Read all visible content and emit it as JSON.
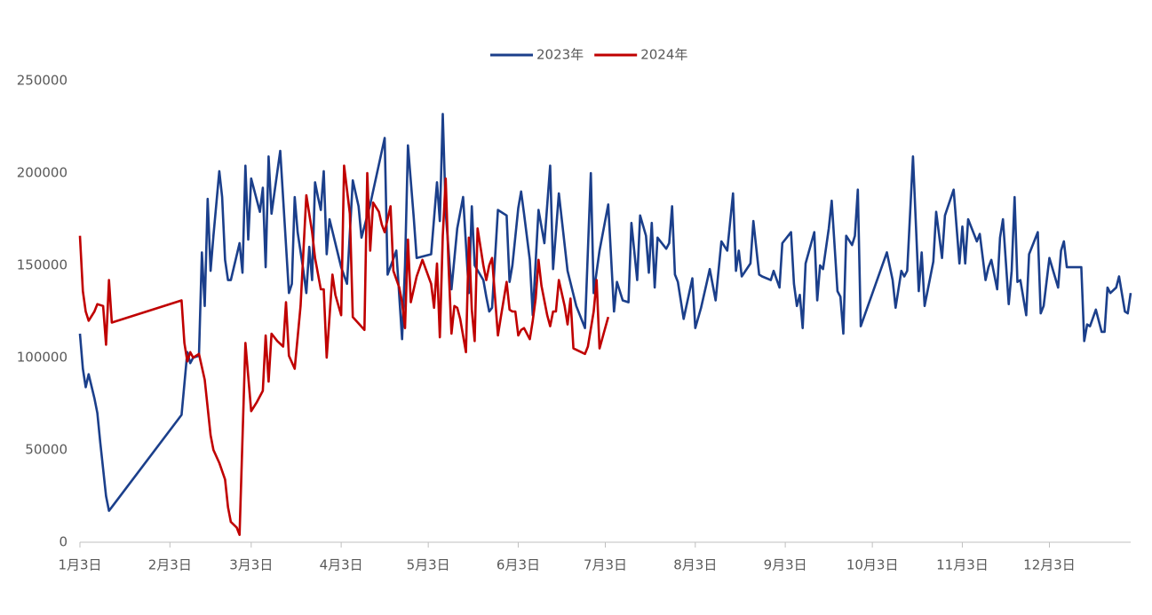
{
  "chart_data": {
    "type": "line",
    "legend": "top",
    "xlim": [
      0,
      362
    ],
    "ylim": [
      0,
      250000
    ],
    "yticks": [
      0,
      50000,
      100000,
      150000,
      200000,
      250000
    ],
    "xticks": [
      {
        "value": 0,
        "label": "1月3日"
      },
      {
        "value": 31,
        "label": "2月3日"
      },
      {
        "value": 59,
        "label": "3月3日"
      },
      {
        "value": 90,
        "label": "4月3日"
      },
      {
        "value": 120,
        "label": "5月3日"
      },
      {
        "value": 151,
        "label": "6月3日"
      },
      {
        "value": 181,
        "label": "7月3日"
      },
      {
        "value": 212,
        "label": "8月3日"
      },
      {
        "value": 243,
        "label": "9月3日"
      },
      {
        "value": 273,
        "label": "10月3日"
      },
      {
        "value": 304,
        "label": "11月3日"
      },
      {
        "value": 334,
        "label": "12月3日"
      }
    ],
    "series": [
      {
        "name": "2023年",
        "color": "#1b3f8b",
        "x": [
          0,
          1,
          2,
          3,
          5,
          6,
          7,
          9,
          10,
          35,
          37,
          38,
          39,
          41,
          42,
          43,
          44,
          45,
          46,
          48,
          49,
          50,
          51,
          52,
          55,
          56,
          57,
          58,
          59,
          62,
          63,
          64,
          65,
          66,
          69,
          72,
          73,
          74,
          75,
          77,
          78,
          79,
          80,
          81,
          82,
          83,
          84,
          85,
          86,
          90,
          92,
          94,
          96,
          97,
          100,
          105,
          106,
          109,
          111,
          112,
          113,
          115,
          116,
          121,
          123,
          124,
          125,
          126,
          128,
          130,
          132,
          134,
          135,
          136,
          139,
          140,
          141,
          142,
          144,
          147,
          148,
          149,
          151,
          152,
          153,
          155,
          156,
          158,
          160,
          162,
          163,
          165,
          168,
          171,
          174,
          176,
          177,
          179,
          182,
          184,
          185,
          187,
          189,
          190,
          192,
          193,
          195,
          196,
          197,
          198,
          199,
          202,
          203,
          204,
          205,
          206,
          208,
          211,
          212,
          214,
          216,
          217,
          219,
          221,
          223,
          225,
          226,
          227,
          228,
          231,
          232,
          234,
          235,
          238,
          239,
          241,
          242,
          245,
          246,
          247,
          248,
          249,
          250,
          253,
          254,
          255,
          256,
          258,
          259,
          261,
          262,
          263,
          264,
          266,
          267,
          268,
          269,
          278,
          280,
          281,
          283,
          284,
          285,
          287,
          289,
          290,
          291,
          294,
          295,
          297,
          298,
          301,
          303,
          304,
          305,
          306,
          309,
          310,
          312,
          313,
          314,
          316,
          317,
          318,
          320,
          321,
          322,
          323,
          324,
          326,
          327,
          330,
          331,
          332,
          334,
          337,
          338,
          339,
          340,
          345,
          346,
          347,
          348,
          350,
          352,
          353,
          354,
          355,
          357,
          358,
          360,
          361,
          362
        ],
        "values": [
          113000,
          94000,
          84000,
          91000,
          78000,
          70000,
          54000,
          25000,
          17000,
          69000,
          103000,
          97000,
          100000,
          101000,
          157000,
          128000,
          186000,
          147000,
          166000,
          201000,
          187000,
          153000,
          142000,
          142000,
          162000,
          146000,
          204000,
          164000,
          197000,
          179000,
          192000,
          149000,
          209000,
          178000,
          212000,
          135000,
          140000,
          187000,
          168000,
          147000,
          135000,
          160000,
          142000,
          195000,
          187000,
          180000,
          201000,
          156000,
          175000,
          149000,
          140000,
          196000,
          182000,
          165000,
          183000,
          219000,
          145000,
          158000,
          110000,
          150000,
          215000,
          176000,
          154000,
          156000,
          195000,
          174000,
          232000,
          179000,
          137000,
          170000,
          187000,
          135000,
          182000,
          150000,
          142000,
          133000,
          125000,
          127000,
          180000,
          177000,
          141000,
          150000,
          181000,
          190000,
          178000,
          153000,
          123000,
          180000,
          162000,
          204000,
          148000,
          189000,
          147000,
          128000,
          116000,
          200000,
          135000,
          158000,
          183000,
          125000,
          141000,
          131000,
          130000,
          173000,
          142000,
          177000,
          166000,
          146000,
          173000,
          138000,
          165000,
          159000,
          162000,
          182000,
          145000,
          141000,
          121000,
          143000,
          116000,
          127000,
          141000,
          148000,
          131000,
          163000,
          158000,
          189000,
          147000,
          158000,
          144000,
          151000,
          174000,
          145000,
          144000,
          142000,
          147000,
          138000,
          162000,
          168000,
          140000,
          128000,
          134000,
          116000,
          151000,
          168000,
          131000,
          150000,
          148000,
          170000,
          185000,
          136000,
          133000,
          113000,
          166000,
          161000,
          166000,
          191000,
          117000,
          157000,
          142000,
          127000,
          147000,
          144000,
          147000,
          209000,
          136000,
          157000,
          128000,
          152000,
          179000,
          154000,
          177000,
          191000,
          151000,
          171000,
          151000,
          175000,
          163000,
          167000,
          142000,
          149000,
          153000,
          137000,
          165000,
          175000,
          129000,
          147000,
          187000,
          141000,
          142000,
          123000,
          156000,
          168000,
          124000,
          128000,
          154000,
          138000,
          158000,
          163000,
          149000,
          149000,
          109000,
          118000,
          117000,
          126000,
          114000,
          114000,
          138000,
          135000,
          138000,
          144000,
          125000,
          124000,
          135000
        ]
      },
      {
        "name": "2024年",
        "color": "#c00000",
        "x": [
          0,
          1,
          2,
          3,
          5,
          6,
          8,
          9,
          10,
          11,
          35,
          36,
          37,
          38,
          39,
          41,
          43,
          45,
          46,
          48,
          50,
          51,
          52,
          54,
          55,
          57,
          59,
          61,
          63,
          64,
          65,
          66,
          68,
          70,
          71,
          72,
          74,
          76,
          78,
          80,
          81,
          83,
          84,
          85,
          87,
          88,
          90,
          91,
          93,
          94,
          98,
          99,
          100,
          101,
          103,
          104,
          105,
          107,
          108,
          110,
          111,
          112,
          113,
          114,
          116,
          118,
          121,
          122,
          123,
          124,
          125,
          126,
          127,
          128,
          129,
          130,
          131,
          133,
          134,
          135,
          136,
          137,
          139,
          140,
          141,
          142,
          144,
          145,
          147,
          148,
          149,
          150,
          151,
          152,
          153,
          155,
          156,
          157,
          158,
          159,
          161,
          162,
          163,
          164,
          165,
          167,
          168,
          169,
          170,
          174,
          175,
          177,
          178,
          179,
          182
        ],
        "values": [
          166000,
          136000,
          125000,
          120000,
          125000,
          129000,
          128000,
          107000,
          142000,
          119000,
          131000,
          108000,
          98000,
          103000,
          100000,
          102000,
          88000,
          58000,
          50000,
          43000,
          34000,
          19000,
          11000,
          8000,
          4000,
          108000,
          71000,
          76000,
          82000,
          112000,
          87000,
          113000,
          109000,
          106000,
          130000,
          101000,
          94000,
          128000,
          188000,
          168000,
          154000,
          137000,
          137000,
          100000,
          145000,
          134000,
          123000,
          204000,
          178000,
          122000,
          115000,
          200000,
          158000,
          184000,
          179000,
          172000,
          168000,
          182000,
          147000,
          138000,
          130000,
          116000,
          164000,
          130000,
          144000,
          153000,
          140000,
          127000,
          151000,
          111000,
          166000,
          197000,
          150000,
          113000,
          128000,
          127000,
          121000,
          103000,
          165000,
          126000,
          109000,
          170000,
          150000,
          142000,
          150000,
          154000,
          112000,
          122000,
          141000,
          126000,
          125000,
          125000,
          112000,
          115000,
          116000,
          110000,
          120000,
          132000,
          153000,
          139000,
          123000,
          117000,
          125000,
          125000,
          142000,
          128000,
          118000,
          132000,
          105000,
          102000,
          106000,
          125000,
          142000,
          105000,
          122000
        ]
      }
    ]
  }
}
